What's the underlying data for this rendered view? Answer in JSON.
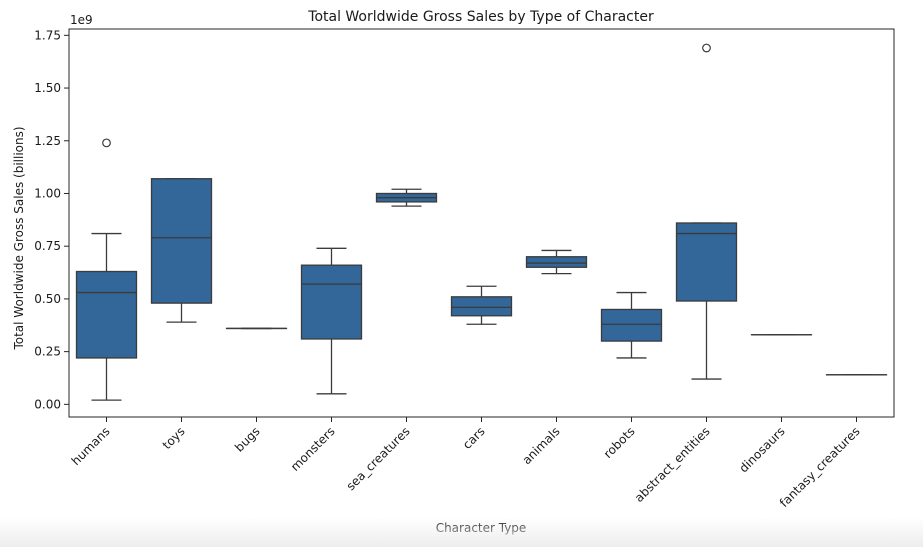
{
  "chart_data": {
    "type": "box",
    "title": "Total Worldwide Gross Sales by Type of Character",
    "xlabel": "Character Type",
    "ylabel": "Total Worldwide Gross Sales (billions)",
    "y_offset_label": "1e9",
    "ylim": [
      -0.06,
      1.78
    ],
    "yticks": [
      0.0,
      0.25,
      0.5,
      0.75,
      1.0,
      1.25,
      1.5,
      1.75
    ],
    "ytick_labels": [
      "0.00",
      "0.25",
      "0.50",
      "0.75",
      "1.00",
      "1.25",
      "1.50",
      "1.75"
    ],
    "box_color": "#336699",
    "grid": false,
    "categories": [
      "humans",
      "toys",
      "bugs",
      "monsters",
      "sea_creatures",
      "cars",
      "animals",
      "robots",
      "abstract_entities",
      "dinosaurs",
      "fantasy_creatures"
    ],
    "boxes": [
      {
        "whisker_low": 0.02,
        "q1": 0.22,
        "median": 0.53,
        "q3": 0.63,
        "whisker_high": 0.81,
        "outliers": [
          1.24
        ]
      },
      {
        "whisker_low": 0.39,
        "q1": 0.48,
        "median": 0.79,
        "q3": 1.07,
        "whisker_high": 1.07,
        "outliers": []
      },
      {
        "whisker_low": 0.36,
        "q1": 0.36,
        "median": 0.36,
        "q3": 0.36,
        "whisker_high": 0.36,
        "outliers": []
      },
      {
        "whisker_low": 0.05,
        "q1": 0.31,
        "median": 0.57,
        "q3": 0.66,
        "whisker_high": 0.74,
        "outliers": []
      },
      {
        "whisker_low": 0.94,
        "q1": 0.96,
        "median": 0.98,
        "q3": 1.0,
        "whisker_high": 1.02,
        "outliers": []
      },
      {
        "whisker_low": 0.38,
        "q1": 0.42,
        "median": 0.46,
        "q3": 0.51,
        "whisker_high": 0.56,
        "outliers": []
      },
      {
        "whisker_low": 0.62,
        "q1": 0.65,
        "median": 0.67,
        "q3": 0.7,
        "whisker_high": 0.73,
        "outliers": []
      },
      {
        "whisker_low": 0.22,
        "q1": 0.3,
        "median": 0.38,
        "q3": 0.45,
        "whisker_high": 0.53,
        "outliers": []
      },
      {
        "whisker_low": 0.12,
        "q1": 0.49,
        "median": 0.81,
        "q3": 0.86,
        "whisker_high": 0.86,
        "outliers": [
          1.69
        ]
      },
      {
        "whisker_low": 0.33,
        "q1": 0.33,
        "median": 0.33,
        "q3": 0.33,
        "whisker_high": 0.33,
        "outliers": []
      },
      {
        "whisker_low": 0.14,
        "q1": 0.14,
        "median": 0.14,
        "q3": 0.14,
        "whisker_high": 0.14,
        "outliers": []
      }
    ]
  }
}
